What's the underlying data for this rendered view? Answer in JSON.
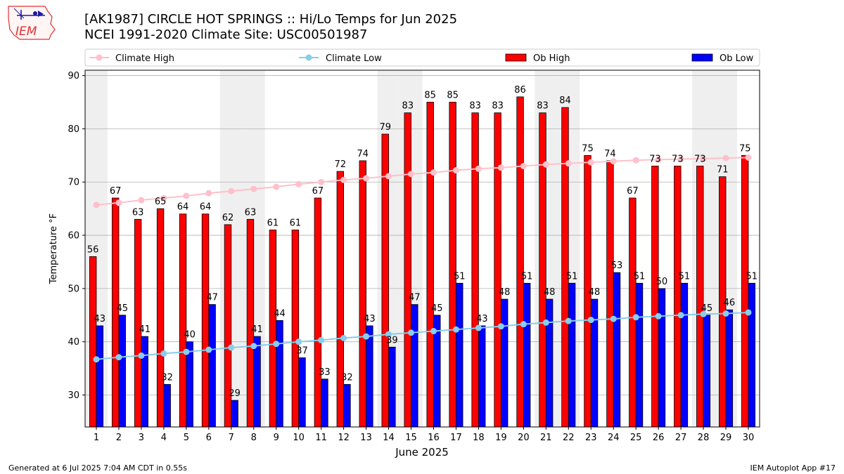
{
  "header": {
    "title_line1": "[AK1987] CIRCLE HOT SPRINGS :: Hi/Lo Temps for Jun 2025",
    "title_line2": "NCEI 1991-2020 Climate Site: USC00501987"
  },
  "logo": {
    "text": "IEM"
  },
  "footer": {
    "generated": "Generated at 6 Jul 2025 7:04 AM CDT in 0.55s",
    "app": "IEM Autoplot App #17"
  },
  "colors": {
    "ob_high": "#ff0000",
    "ob_low": "#0000ff",
    "climate_high": "#ffc0cb",
    "climate_low": "#87ceeb",
    "weekend_band": "#efefef",
    "grid": "#b0b0b0"
  },
  "chart_data": {
    "type": "bar",
    "xlabel": "June 2025",
    "ylabel": "Temperature °F",
    "ylim": [
      24,
      91
    ],
    "yticks": [
      30,
      40,
      50,
      60,
      70,
      80,
      90
    ],
    "grid": "horizontal",
    "legend_position": "top",
    "categories": [
      "1",
      "2",
      "3",
      "4",
      "5",
      "6",
      "7",
      "8",
      "9",
      "10",
      "11",
      "12",
      "13",
      "14",
      "15",
      "16",
      "17",
      "18",
      "19",
      "20",
      "21",
      "22",
      "23",
      "24",
      "25",
      "26",
      "27",
      "28",
      "29",
      "30"
    ],
    "weekend_days": [
      1,
      7,
      8,
      14,
      15,
      21,
      22,
      28,
      29
    ],
    "series": [
      {
        "name": "Ob High",
        "kind": "bar",
        "values": [
          56,
          67,
          63,
          65,
          64,
          64,
          62,
          63,
          61,
          61,
          67,
          72,
          74,
          79,
          83,
          85,
          85,
          83,
          83,
          86,
          83,
          84,
          75,
          74,
          67,
          73,
          73,
          73,
          71,
          75
        ]
      },
      {
        "name": "Ob Low",
        "kind": "bar",
        "values": [
          43,
          45,
          41,
          32,
          40,
          47,
          29,
          41,
          44,
          37,
          33,
          32,
          43,
          39,
          47,
          45,
          51,
          43,
          48,
          51,
          48,
          51,
          48,
          53,
          51,
          50,
          51,
          45,
          46,
          51
        ]
      },
      {
        "name": "Climate High",
        "kind": "line",
        "values": [
          65.7,
          66.1,
          66.6,
          67.0,
          67.4,
          67.9,
          68.3,
          68.7,
          69.1,
          69.6,
          70.0,
          70.4,
          70.7,
          71.1,
          71.5,
          71.8,
          72.2,
          72.5,
          72.7,
          73.0,
          73.3,
          73.5,
          73.7,
          73.9,
          74.1,
          74.2,
          74.3,
          74.4,
          74.5,
          74.6
        ]
      },
      {
        "name": "Climate Low",
        "kind": "line",
        "values": [
          36.7,
          37.1,
          37.4,
          37.8,
          38.1,
          38.5,
          38.9,
          39.2,
          39.6,
          40.0,
          40.3,
          40.7,
          41.0,
          41.4,
          41.7,
          42.0,
          42.3,
          42.6,
          42.9,
          43.3,
          43.6,
          43.9,
          44.1,
          44.3,
          44.6,
          44.8,
          45.0,
          45.2,
          45.3,
          45.5
        ]
      }
    ]
  }
}
